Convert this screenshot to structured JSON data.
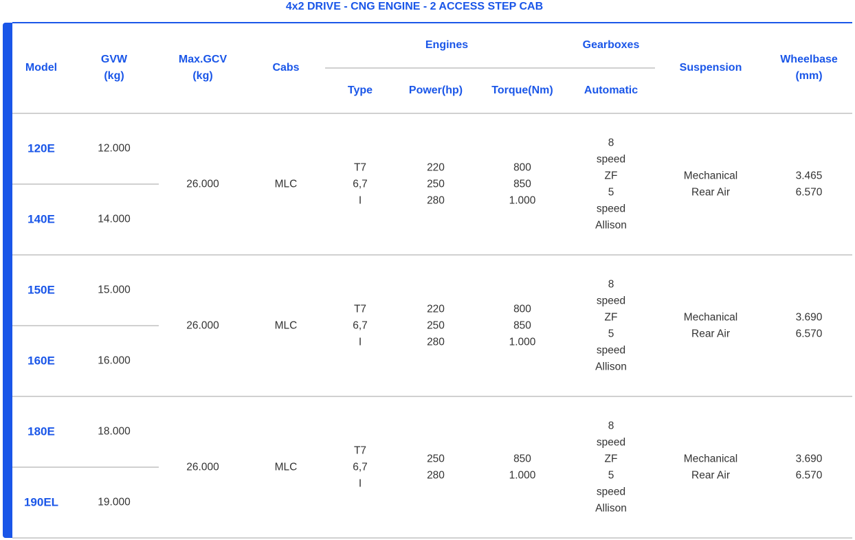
{
  "title": "4x2 DRIVE - CNG ENGINE - 2 ACCESS STEP CAB",
  "header": {
    "model": "Model",
    "gvw": [
      "GVW",
      "(kg)"
    ],
    "max_gcv": [
      "Max.GCV",
      "(kg)"
    ],
    "cabs": "Cabs",
    "engines": "Engines",
    "gearboxes": "Gearboxes",
    "suspension": "Suspension",
    "wheelbase": [
      "Wheelbase",
      "(mm)"
    ],
    "type": "Type",
    "power": "Power(hp)",
    "torque": "Torque(Nm)",
    "automatic": "Automatic"
  },
  "groups": [
    {
      "models": [
        {
          "model": "120E",
          "gvw": "12.000"
        },
        {
          "model": "140E",
          "gvw": "14.000"
        }
      ],
      "max_gcv": "26.000",
      "cabs": "MLC",
      "type": [
        "T7",
        "6,7",
        "I"
      ],
      "power": [
        "220",
        "250",
        "280"
      ],
      "torque": [
        "800",
        "850",
        "1.000"
      ],
      "gearbox": [
        "8",
        "speed",
        "ZF",
        "5",
        "speed",
        "Allison"
      ],
      "suspension": [
        "Mechanical",
        "Rear Air"
      ],
      "wheelbase": [
        "3.465",
        "6.570"
      ]
    },
    {
      "models": [
        {
          "model": "150E",
          "gvw": "15.000"
        },
        {
          "model": "160E",
          "gvw": "16.000"
        }
      ],
      "max_gcv": "26.000",
      "cabs": "MLC",
      "type": [
        "T7",
        "6,7",
        "I"
      ],
      "power": [
        "220",
        "250",
        "280"
      ],
      "torque": [
        "800",
        "850",
        "1.000"
      ],
      "gearbox": [
        "8",
        "speed",
        "ZF",
        "5",
        "speed",
        "Allison"
      ],
      "suspension": [
        "Mechanical",
        "Rear Air"
      ],
      "wheelbase": [
        "3.690",
        "6.570"
      ]
    },
    {
      "models": [
        {
          "model": "180E",
          "gvw": "18.000"
        },
        {
          "model": "190EL",
          "gvw": "19.000"
        }
      ],
      "max_gcv": "26.000",
      "cabs": "MLC",
      "type": [
        "T7",
        "6,7",
        "I"
      ],
      "power": [
        "250",
        "280"
      ],
      "torque": [
        "850",
        "1.000"
      ],
      "gearbox": [
        "8",
        "speed",
        "ZF",
        "5",
        "speed",
        "Allison"
      ],
      "suspension": [
        "Mechanical",
        "Rear Air"
      ],
      "wheelbase": [
        "3.690",
        "6.570"
      ]
    }
  ]
}
